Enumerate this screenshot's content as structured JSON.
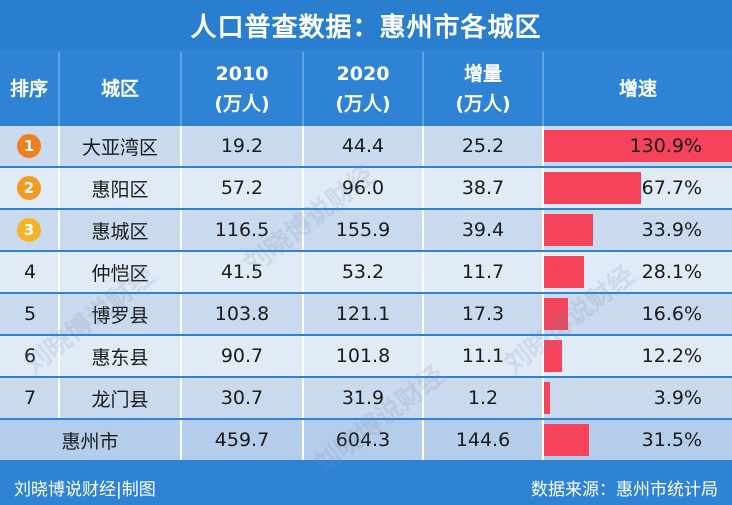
{
  "title": "人口普查数据：惠州市各城区",
  "headers": {
    "rank": "排序",
    "district": "城区",
    "y2010_line1": "2010",
    "y2010_line2": "(万人)",
    "y2020_line1": "2020",
    "y2020_line2": "(万人)",
    "increase_line1": "增量",
    "increase_line2": "(万人)",
    "growth": "增速"
  },
  "rows": [
    {
      "rank": "1",
      "district": "大亚湾区",
      "p2010": "19.2",
      "p2020": "44.4",
      "increase": "25.2",
      "growth_label": "130.9%",
      "growth": 130.9,
      "badge_color": "#f07f1d"
    },
    {
      "rank": "2",
      "district": "惠阳区",
      "p2010": "57.2",
      "p2020": "96.0",
      "increase": "38.7",
      "growth_label": "67.7%",
      "growth": 67.7,
      "badge_color": "#f29a22"
    },
    {
      "rank": "3",
      "district": "惠城区",
      "p2010": "116.5",
      "p2020": "155.9",
      "increase": "39.4",
      "growth_label": "33.9%",
      "growth": 33.9,
      "badge_color": "#f5b427"
    },
    {
      "rank": "4",
      "district": "仲恺区",
      "p2010": "41.5",
      "p2020": "53.2",
      "increase": "11.7",
      "growth_label": "28.1%",
      "growth": 28.1
    },
    {
      "rank": "5",
      "district": "博罗县",
      "p2010": "103.8",
      "p2020": "121.1",
      "increase": "17.3",
      "growth_label": "16.6%",
      "growth": 16.6
    },
    {
      "rank": "6",
      "district": "惠东县",
      "p2010": "90.7",
      "p2020": "101.8",
      "increase": "11.1",
      "growth_label": "12.2%",
      "growth": 12.2
    },
    {
      "rank": "7",
      "district": "龙门县",
      "p2010": "30.7",
      "p2020": "31.9",
      "increase": "1.2",
      "growth_label": "3.9%",
      "growth": 3.9
    }
  ],
  "total": {
    "district": "惠州市",
    "p2010": "459.7",
    "p2020": "604.3",
    "increase": "144.6",
    "growth_label": "31.5%",
    "growth": 31.5
  },
  "growth_max": 130.9,
  "footer": {
    "left": "刘晓博说财经|制图",
    "right": "数据来源：惠州市统计局"
  },
  "watermark": "刘晓博说财经",
  "colors": {
    "bar": "#f4435a",
    "header_bg": "#2f83d4"
  }
}
